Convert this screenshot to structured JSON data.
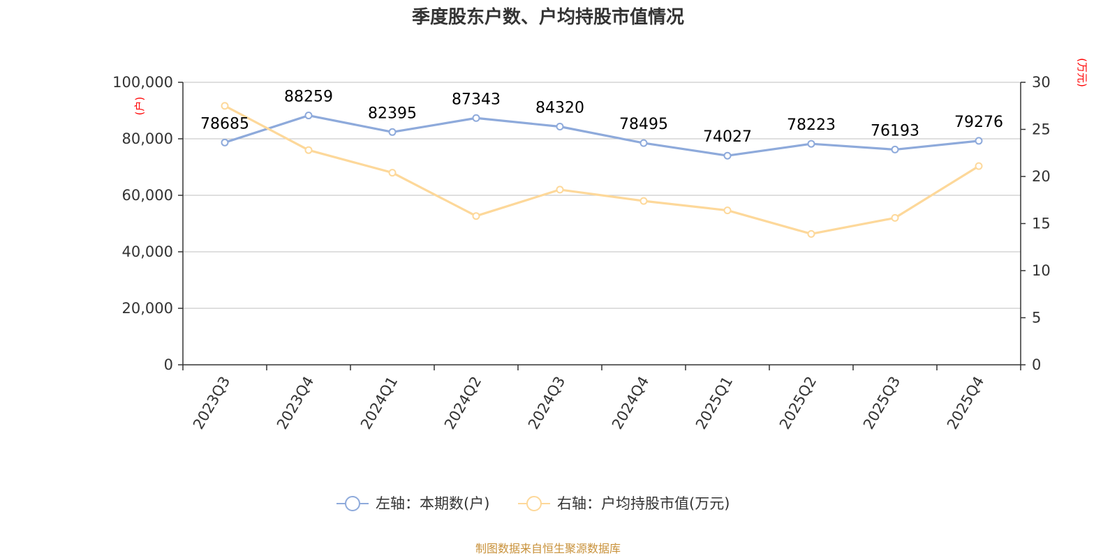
{
  "chart_data": {
    "type": "line",
    "title": "季度股东户数、户均持股市值情况",
    "categories": [
      "2023Q3",
      "2023Q4",
      "2024Q1",
      "2024Q2",
      "2024Q3",
      "2024Q4",
      "2025Q1",
      "2025Q2",
      "2025Q3",
      "2025Q4"
    ],
    "left_axis": {
      "unit_label": "(户)",
      "ylim": [
        0,
        100000
      ],
      "ticks": [
        "0",
        "20,000",
        "40,000",
        "60,000",
        "80,000",
        "100,000"
      ],
      "tick_values": [
        0,
        20000,
        40000,
        60000,
        80000,
        100000
      ]
    },
    "right_axis": {
      "unit_label": "(万元)",
      "ylim": [
        0,
        30
      ],
      "ticks": [
        "0",
        "5",
        "10",
        "15",
        "20",
        "25",
        "30"
      ],
      "tick_values": [
        0,
        5,
        10,
        15,
        20,
        25,
        30
      ]
    },
    "series": [
      {
        "name": "左轴：本期数(户)",
        "axis": "left",
        "color": "#8eaadb",
        "values": [
          78685,
          88259,
          82395,
          87343,
          84320,
          78495,
          74027,
          78223,
          76193,
          79276
        ],
        "labels": [
          "78685",
          "88259",
          "82395",
          "87343",
          "84320",
          "78495",
          "74027",
          "78223",
          "76193",
          "79276"
        ]
      },
      {
        "name": "右轴：户均持股市值(万元)",
        "axis": "right",
        "color": "#fdd89a",
        "values": [
          27.5,
          22.8,
          20.4,
          15.8,
          18.6,
          17.4,
          16.4,
          13.9,
          15.6,
          21.1
        ]
      }
    ],
    "grid": true,
    "legend_position": "bottom"
  },
  "footer": {
    "source": "制图数据来自恒生聚源数据库"
  }
}
